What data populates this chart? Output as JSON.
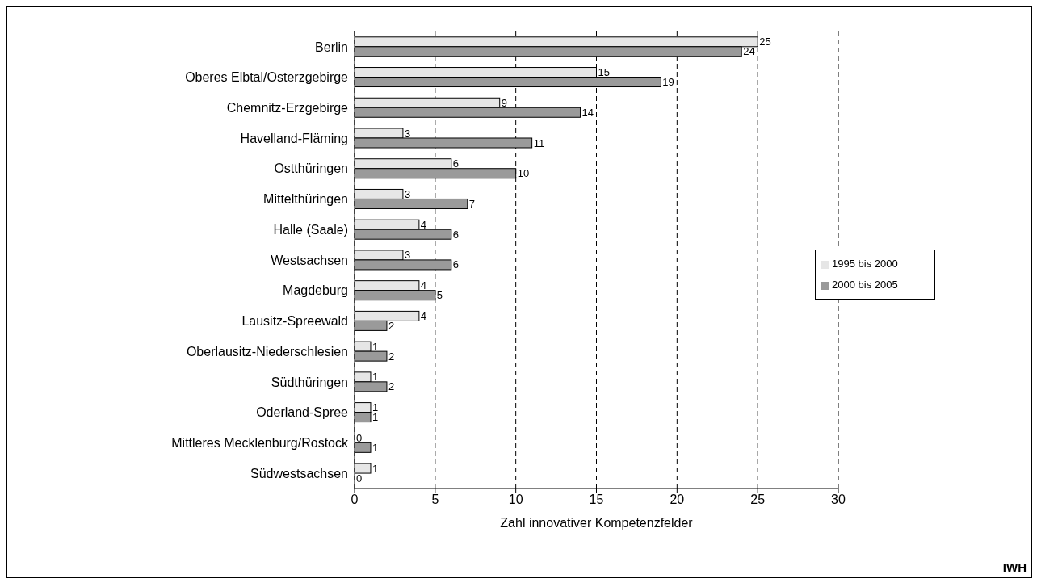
{
  "chart_data": {
    "type": "bar",
    "orientation": "horizontal",
    "xlabel": "Zahl innovativer Kompetenzfelder",
    "categories": [
      "Berlin",
      "Oberes Elbtal/Osterzgebirge",
      "Chemnitz-Erzgebirge",
      "Havelland-Fläming",
      "Ostthüringen",
      "Mittelthüringen",
      "Halle (Saale)",
      "Westsachsen",
      "Magdeburg",
      "Lausitz-Spreewald",
      "Oberlausitz-Niederschlesien",
      "Südthüringen",
      "Oderland-Spree",
      "Mittleres Mecklenburg/Rostock",
      "Südwestsachsen"
    ],
    "series": [
      {
        "name": "1995 bis 2000",
        "color": "#e6e6e6",
        "values": [
          25,
          15,
          9,
          3,
          6,
          3,
          4,
          3,
          4,
          4,
          1,
          1,
          1,
          0,
          1
        ]
      },
      {
        "name": "2000 bis 2005",
        "color": "#9a9a9a",
        "values": [
          24,
          19,
          14,
          11,
          10,
          7,
          6,
          6,
          5,
          2,
          2,
          2,
          1,
          1,
          0
        ]
      }
    ],
    "xlim": [
      0,
      30
    ],
    "xticks": [
      0,
      5,
      10,
      15,
      20,
      25,
      30
    ],
    "grid": "x",
    "legend": "right",
    "data_labels": true,
    "annotations": [
      "IWH"
    ]
  }
}
